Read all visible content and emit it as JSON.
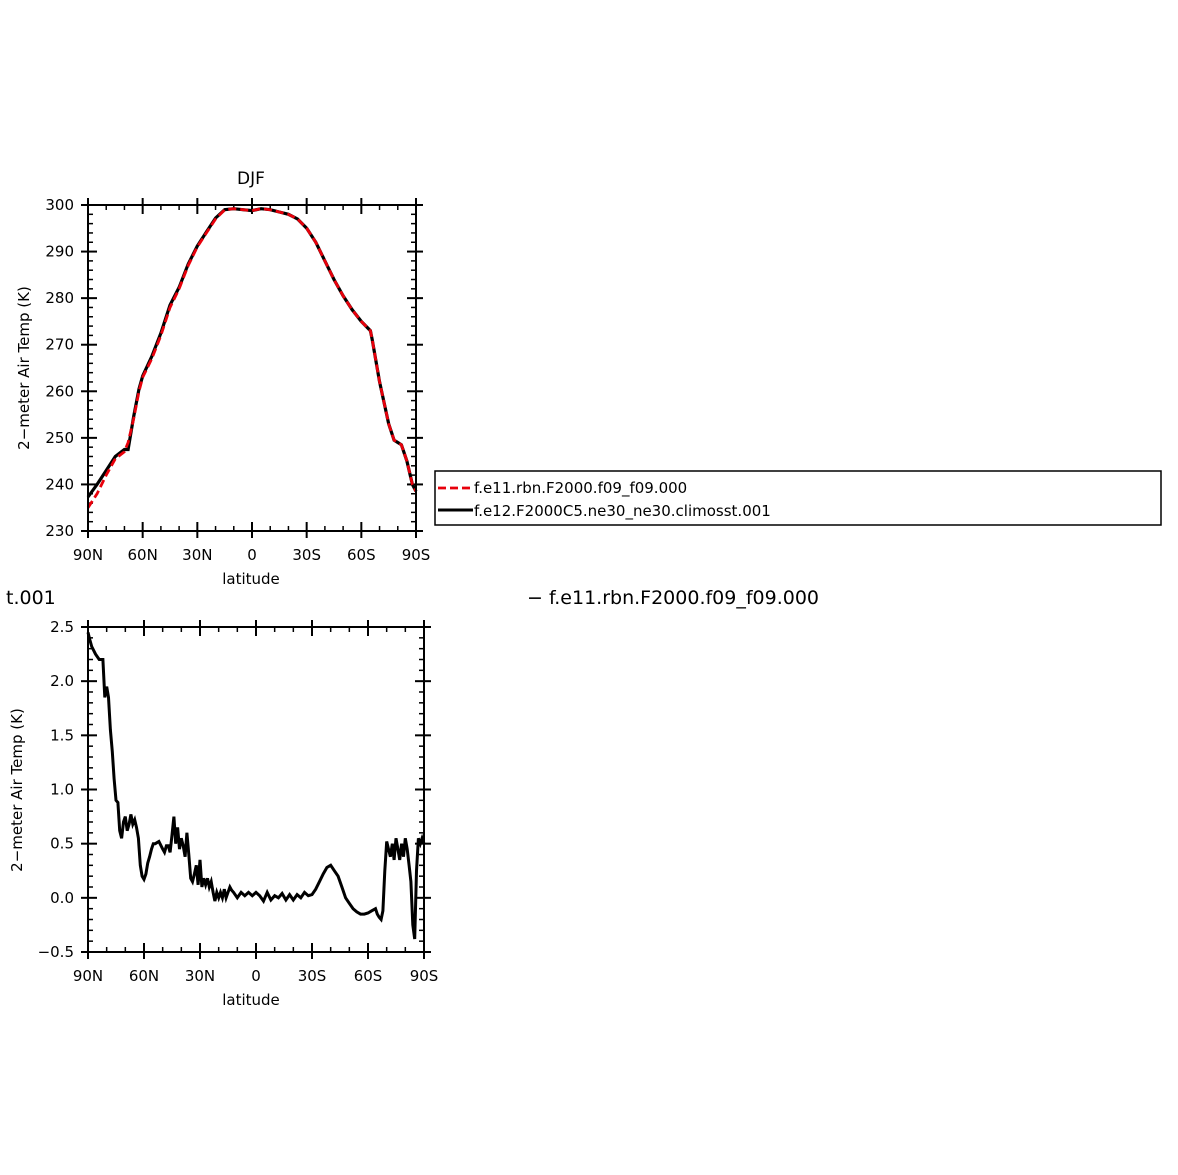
{
  "chart_data": [
    {
      "type": "line",
      "title": "DJF",
      "xlabel": "latitude",
      "ylabel": "2−meter Air Temp (K)",
      "xlim": [
        90,
        -90
      ],
      "ylim": [
        230,
        300
      ],
      "xticks": [
        90,
        60,
        30,
        0,
        -30,
        -60,
        -90
      ],
      "xtick_labels": [
        "90N",
        "60N",
        "30N",
        "0",
        "30S",
        "60S",
        "90S"
      ],
      "yticks": [
        230,
        240,
        250,
        260,
        270,
        280,
        290,
        300
      ],
      "ytick_labels": [
        "230",
        "240",
        "250",
        "260",
        "270",
        "280",
        "290",
        "300"
      ],
      "legend": {
        "placement": "right"
      },
      "series": [
        {
          "name": "f.e11.rbn.F2000.f09_f09.000",
          "color": "#e8000b",
          "dash": "dashed",
          "x": [
            90,
            85,
            80,
            75,
            70,
            68,
            65,
            62,
            60,
            55,
            50,
            45,
            40,
            35,
            30,
            25,
            20,
            15,
            10,
            5,
            0,
            -5,
            -10,
            -15,
            -20,
            -25,
            -30,
            -35,
            -40,
            -45,
            -50,
            -55,
            -60,
            -65,
            -66,
            -70,
            -75,
            -78,
            -80,
            -82,
            -85,
            -88,
            -90
          ],
          "y": [
            235,
            238,
            242,
            245.5,
            247,
            249,
            254,
            260,
            263,
            267,
            272,
            278,
            282,
            287,
            291,
            294,
            297,
            299,
            299.2,
            299,
            298.8,
            299.2,
            299,
            298.5,
            298,
            297,
            295,
            292,
            288,
            284,
            280.5,
            277.5,
            275,
            273,
            271,
            262,
            253,
            249.5,
            249,
            248.5,
            245,
            240,
            238.5
          ]
        },
        {
          "name": "f.e12.F2000C5.ne30_ne30.climosst.001",
          "color": "#000000",
          "dash": "solid",
          "x": [
            90,
            85,
            80,
            75,
            70,
            68,
            65,
            62,
            60,
            55,
            50,
            45,
            40,
            35,
            30,
            25,
            20,
            15,
            10,
            5,
            0,
            -5,
            -10,
            -15,
            -20,
            -25,
            -30,
            -35,
            -40,
            -45,
            -50,
            -55,
            -60,
            -65,
            -66,
            -70,
            -75,
            -78,
            -80,
            -82,
            -85,
            -88,
            -90
          ],
          "y": [
            237.3,
            240,
            243,
            246,
            247.5,
            247.5,
            254.5,
            260.5,
            263.3,
            267.5,
            272.5,
            278.5,
            282.3,
            287.3,
            291.2,
            294.2,
            297.2,
            299,
            299.2,
            299,
            298.8,
            299.2,
            299,
            298.5,
            298,
            297,
            295,
            292,
            288,
            284,
            280.5,
            277.5,
            275,
            273,
            271,
            262,
            253,
            249.5,
            249,
            248.5,
            245,
            240,
            238.5
          ]
        }
      ]
    },
    {
      "type": "line",
      "title": "",
      "xlabel": "latitude",
      "ylabel": "2−meter Air Temp (K)",
      "xlim": [
        90,
        -90
      ],
      "ylim": [
        -0.5,
        2.5
      ],
      "xticks": [
        90,
        60,
        30,
        0,
        -30,
        -60,
        -90
      ],
      "xtick_labels": [
        "90N",
        "60N",
        "30N",
        "0",
        "30S",
        "60S",
        "90S"
      ],
      "yticks": [
        -0.5,
        0.0,
        0.5,
        1.0,
        1.5,
        2.0,
        2.5
      ],
      "ytick_labels": [
        "−0.5",
        "0.0",
        "0.5",
        "1.0",
        "1.5",
        "2.0",
        "2.5"
      ],
      "series": [
        {
          "color": "#000000",
          "dash": "solid",
          "x": [
            90,
            89,
            88,
            86,
            84,
            82,
            81,
            80,
            79,
            78,
            77,
            76,
            75,
            74,
            73,
            72,
            71,
            70,
            69,
            68,
            67,
            66,
            65,
            64,
            63,
            62,
            61,
            60,
            59,
            58,
            57,
            56,
            55,
            54,
            52,
            50,
            49,
            48,
            47,
            46,
            45,
            44,
            43,
            42,
            41,
            40,
            39,
            38,
            37,
            36,
            35,
            34,
            33,
            32,
            31,
            30,
            29,
            28,
            27,
            26,
            25,
            24,
            23,
            22,
            21,
            20,
            19,
            18,
            17,
            16,
            15,
            14,
            13,
            12,
            10,
            8,
            6,
            4,
            2,
            0,
            -2,
            -4,
            -6,
            -8,
            -10,
            -12,
            -14,
            -16,
            -18,
            -20,
            -22,
            -24,
            -26,
            -28,
            -30,
            -32,
            -34,
            -36,
            -38,
            -40,
            -42,
            -44,
            -46,
            -48,
            -50,
            -52,
            -54,
            -56,
            -58,
            -60,
            -62,
            -64,
            -65,
            -66,
            -67,
            -68,
            -69,
            -70,
            -71,
            -72,
            -73,
            -74,
            -75,
            -76,
            -77,
            -78,
            -79,
            -80,
            -81,
            -82,
            -83,
            -84,
            -85,
            -86,
            -87,
            -88,
            -89,
            -90
          ],
          "y": [
            2.45,
            2.38,
            2.32,
            2.25,
            2.2,
            2.2,
            1.85,
            1.95,
            1.85,
            1.55,
            1.35,
            1.1,
            0.9,
            0.88,
            0.62,
            0.55,
            0.7,
            0.75,
            0.62,
            0.68,
            0.77,
            0.68,
            0.72,
            0.65,
            0.55,
            0.3,
            0.2,
            0.17,
            0.22,
            0.32,
            0.38,
            0.45,
            0.5,
            0.5,
            0.52,
            0.45,
            0.42,
            0.48,
            0.48,
            0.42,
            0.58,
            0.75,
            0.5,
            0.65,
            0.45,
            0.55,
            0.48,
            0.38,
            0.6,
            0.4,
            0.18,
            0.15,
            0.22,
            0.3,
            0.12,
            0.35,
            0.1,
            0.18,
            0.12,
            0.18,
            0.1,
            0.15,
            0.05,
            -0.03,
            0.05,
            0.0,
            0.05,
            0.0,
            0.08,
            0.0,
            0.05,
            0.1,
            0.07,
            0.05,
            0.0,
            0.05,
            0.02,
            0.05,
            0.02,
            0.05,
            0.02,
            -0.03,
            0.05,
            -0.02,
            0.02,
            0.0,
            0.04,
            -0.02,
            0.03,
            -0.02,
            0.03,
            0.0,
            0.05,
            0.02,
            0.03,
            0.08,
            0.15,
            0.22,
            0.28,
            0.3,
            0.25,
            0.2,
            0.1,
            0.0,
            -0.05,
            -0.1,
            -0.13,
            -0.15,
            -0.15,
            -0.14,
            -0.12,
            -0.1,
            -0.15,
            -0.18,
            -0.2,
            -0.12,
            0.25,
            0.52,
            0.45,
            0.38,
            0.5,
            0.35,
            0.55,
            0.45,
            0.35,
            0.5,
            0.38,
            0.55,
            0.45,
            0.3,
            0.15,
            -0.25,
            -0.38,
            0.25,
            0.55,
            0.5,
            0.55,
            0.5
          ]
        }
      ]
    }
  ],
  "stray_labels": {
    "left": "t.001",
    "right": "−  f.e11.rbn.F2000.f09_f09.000"
  }
}
